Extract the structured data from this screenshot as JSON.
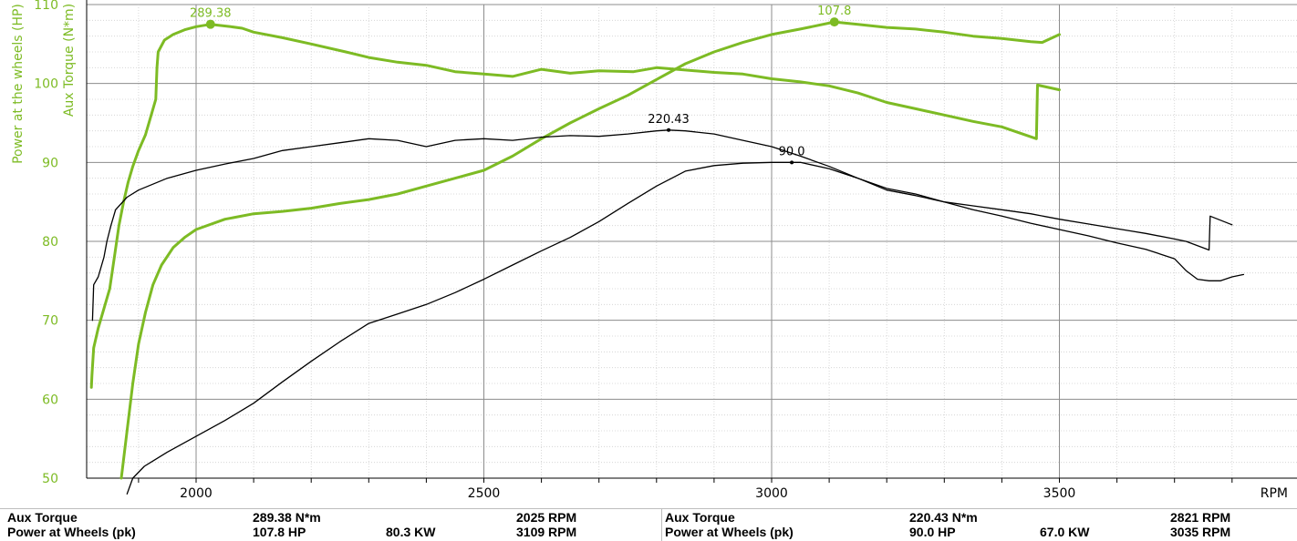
{
  "colors": {
    "green": "#7dbb24",
    "black": "#000000",
    "grid_major": "#8c8c8c",
    "grid_minor": "#cfcfcf"
  },
  "chart_data": {
    "type": "line",
    "xlabel": "RPM",
    "ylabel_primary": "Power at the wheels (HP)",
    "ylabel_secondary": "Aux Torque (N*m)",
    "xlim": [
      1810,
      3820
    ],
    "ylim": [
      50,
      110
    ],
    "x_ticks": [
      "2000",
      "2500",
      "3000",
      "3500"
    ],
    "y_ticks": [
      "50",
      "60",
      "70",
      "80",
      "90",
      "100",
      "110"
    ],
    "grid": true,
    "series": [
      {
        "name": "Aux Torque",
        "color": "green",
        "points": [
          [
            1818,
            61.5
          ],
          [
            1819,
            63
          ],
          [
            1822,
            66.5
          ],
          [
            1830,
            69
          ],
          [
            1840,
            71.5
          ],
          [
            1850,
            74
          ],
          [
            1858,
            78
          ],
          [
            1866,
            82
          ],
          [
            1874,
            85
          ],
          [
            1882,
            87.5
          ],
          [
            1890,
            89.5
          ],
          [
            1900,
            91.5
          ],
          [
            1912,
            93.5
          ],
          [
            1922,
            96
          ],
          [
            1930,
            98
          ],
          [
            1932,
            102
          ],
          [
            1934,
            104
          ],
          [
            1945,
            105.5
          ],
          [
            1960,
            106.2
          ],
          [
            1980,
            106.8
          ],
          [
            2000,
            107.2
          ],
          [
            2025,
            107.5
          ],
          [
            2060,
            107.2
          ],
          [
            2080,
            107
          ],
          [
            2100,
            106.5
          ],
          [
            2150,
            105.8
          ],
          [
            2200,
            105
          ],
          [
            2260,
            104
          ],
          [
            2300,
            103.3
          ],
          [
            2350,
            102.7
          ],
          [
            2400,
            102.3
          ],
          [
            2450,
            101.5
          ],
          [
            2500,
            101.2
          ],
          [
            2550,
            100.9
          ],
          [
            2600,
            101.8
          ],
          [
            2650,
            101.3
          ],
          [
            2700,
            101.6
          ],
          [
            2760,
            101.5
          ],
          [
            2800,
            102
          ],
          [
            2850,
            101.7
          ],
          [
            2900,
            101.4
          ],
          [
            2950,
            101.2
          ],
          [
            3000,
            100.6
          ],
          [
            3050,
            100.2
          ],
          [
            3100,
            99.7
          ],
          [
            3150,
            98.8
          ],
          [
            3200,
            97.6
          ],
          [
            3250,
            96.8
          ],
          [
            3300,
            96
          ],
          [
            3350,
            95.2
          ],
          [
            3400,
            94.5
          ],
          [
            3460,
            93
          ],
          [
            3462,
            99.8
          ],
          [
            3500,
            99.2
          ]
        ]
      },
      {
        "name": "Power at Wheels",
        "color": "green",
        "points": [
          [
            1870,
            50
          ],
          [
            1880,
            56
          ],
          [
            1890,
            62
          ],
          [
            1900,
            67
          ],
          [
            1912,
            71
          ],
          [
            1925,
            74.5
          ],
          [
            1940,
            77
          ],
          [
            1960,
            79.2
          ],
          [
            1980,
            80.5
          ],
          [
            2000,
            81.5
          ],
          [
            2050,
            82.8
          ],
          [
            2100,
            83.5
          ],
          [
            2150,
            83.8
          ],
          [
            2200,
            84.2
          ],
          [
            2250,
            84.8
          ],
          [
            2300,
            85.3
          ],
          [
            2350,
            86
          ],
          [
            2400,
            87
          ],
          [
            2450,
            88
          ],
          [
            2500,
            89
          ],
          [
            2550,
            90.8
          ],
          [
            2600,
            93
          ],
          [
            2650,
            95
          ],
          [
            2700,
            96.8
          ],
          [
            2750,
            98.5
          ],
          [
            2800,
            100.5
          ],
          [
            2850,
            102.5
          ],
          [
            2900,
            104
          ],
          [
            2950,
            105.2
          ],
          [
            3000,
            106.2
          ],
          [
            3050,
            106.9
          ],
          [
            3109,
            107.8
          ],
          [
            3150,
            107.5
          ],
          [
            3200,
            107.1
          ],
          [
            3250,
            106.9
          ],
          [
            3300,
            106.5
          ],
          [
            3350,
            106
          ],
          [
            3400,
            105.7
          ],
          [
            3450,
            105.3
          ],
          [
            3470,
            105.2
          ],
          [
            3500,
            106.2
          ]
        ]
      },
      {
        "name": "Aux Torque",
        "color": "black",
        "points": [
          [
            1820,
            70
          ],
          [
            1822,
            74.5
          ],
          [
            1830,
            75.5
          ],
          [
            1840,
            78
          ],
          [
            1845,
            80
          ],
          [
            1852,
            82
          ],
          [
            1860,
            84
          ],
          [
            1880,
            85.6
          ],
          [
            1900,
            86.5
          ],
          [
            1950,
            88
          ],
          [
            2000,
            89
          ],
          [
            2050,
            89.8
          ],
          [
            2100,
            90.5
          ],
          [
            2150,
            91.5
          ],
          [
            2200,
            92
          ],
          [
            2250,
            92.5
          ],
          [
            2300,
            93
          ],
          [
            2350,
            92.8
          ],
          [
            2400,
            92
          ],
          [
            2450,
            92.8
          ],
          [
            2500,
            93
          ],
          [
            2550,
            92.8
          ],
          [
            2600,
            93.2
          ],
          [
            2650,
            93.4
          ],
          [
            2700,
            93.3
          ],
          [
            2750,
            93.6
          ],
          [
            2800,
            94.0
          ],
          [
            2821,
            94.1
          ],
          [
            2850,
            94.0
          ],
          [
            2900,
            93.6
          ],
          [
            2950,
            92.8
          ],
          [
            3000,
            92
          ],
          [
            3050,
            90.8
          ],
          [
            3100,
            89.5
          ],
          [
            3150,
            88
          ],
          [
            3200,
            86.5
          ],
          [
            3250,
            85.8
          ],
          [
            3300,
            85
          ],
          [
            3350,
            84.5
          ],
          [
            3400,
            84
          ],
          [
            3450,
            83.5
          ],
          [
            3500,
            82.8
          ],
          [
            3550,
            82.2
          ],
          [
            3600,
            81.6
          ],
          [
            3650,
            81
          ],
          [
            3700,
            80.3
          ],
          [
            3720,
            80
          ],
          [
            3760,
            78.9
          ],
          [
            3762,
            83.2
          ],
          [
            3800,
            82.1
          ]
        ]
      },
      {
        "name": "Power at Wheels",
        "color": "black",
        "points": [
          [
            1880,
            48
          ],
          [
            1890,
            50
          ],
          [
            1910,
            51.5
          ],
          [
            1950,
            53.3
          ],
          [
            2000,
            55.3
          ],
          [
            2050,
            57.3
          ],
          [
            2100,
            59.5
          ],
          [
            2150,
            62.2
          ],
          [
            2200,
            64.8
          ],
          [
            2250,
            67.3
          ],
          [
            2300,
            69.6
          ],
          [
            2350,
            70.8
          ],
          [
            2400,
            72
          ],
          [
            2450,
            73.5
          ],
          [
            2500,
            75.2
          ],
          [
            2550,
            77
          ],
          [
            2600,
            78.8
          ],
          [
            2650,
            80.5
          ],
          [
            2700,
            82.5
          ],
          [
            2750,
            84.8
          ],
          [
            2800,
            87
          ],
          [
            2850,
            88.9
          ],
          [
            2900,
            89.6
          ],
          [
            2950,
            89.9
          ],
          [
            3000,
            90
          ],
          [
            3035,
            90
          ],
          [
            3050,
            90
          ],
          [
            3100,
            89.2
          ],
          [
            3150,
            88
          ],
          [
            3200,
            86.7
          ],
          [
            3250,
            86
          ],
          [
            3300,
            85
          ],
          [
            3350,
            84
          ],
          [
            3400,
            83.2
          ],
          [
            3450,
            82.3
          ],
          [
            3500,
            81.5
          ],
          [
            3550,
            80.7
          ],
          [
            3600,
            79.8
          ],
          [
            3650,
            79
          ],
          [
            3700,
            77.8
          ],
          [
            3720,
            76.3
          ],
          [
            3740,
            75.2
          ],
          [
            3760,
            75.0
          ],
          [
            3780,
            75.0
          ],
          [
            3800,
            75.5
          ],
          [
            3820,
            75.8
          ]
        ]
      }
    ],
    "annotations": [
      {
        "label": "289.38",
        "x": 2025,
        "y": 107.5,
        "color": "green"
      },
      {
        "label": "107.8",
        "x": 3109,
        "y": 107.8,
        "color": "green"
      },
      {
        "label": "220.43",
        "x": 2821,
        "y": 94.1,
        "color": "black"
      },
      {
        "label": "90.0",
        "x": 3035,
        "y": 90.0,
        "color": "black"
      }
    ]
  },
  "summary": {
    "left": {
      "torque_label": "Aux Torque",
      "torque_value": "289.38 N*m",
      "torque_rpm": "2025 RPM",
      "power_label": "Power at Wheels (pk)",
      "power_value": "107.8 HP",
      "power_kw": "80.3 KW",
      "power_rpm": "3109 RPM"
    },
    "right": {
      "torque_label": "Aux Torque",
      "torque_value": "220.43 N*m",
      "torque_rpm": "2821 RPM",
      "power_label": "Power at Wheels (pk)",
      "power_value": "90.0 HP",
      "power_kw": "67.0 KW",
      "power_rpm": "3035 RPM"
    }
  }
}
